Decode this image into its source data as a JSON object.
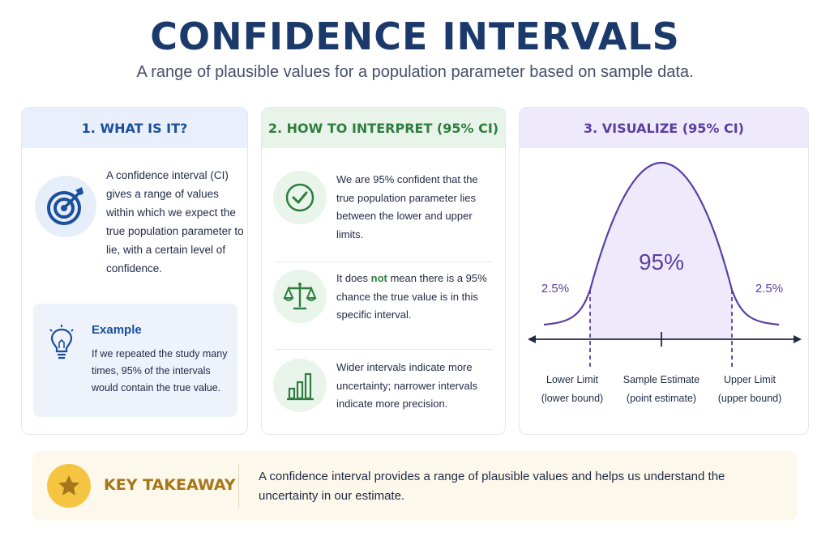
{
  "title": "CONFIDENCE INTERVALS",
  "subtitle": "A range of plausible values for a population parameter based on sample data.",
  "cards": {
    "what": {
      "heading": "1. WHAT IS IT?",
      "icon": "target-icon",
      "text": "A confidence interval (CI) gives a range of values within which we expect the true population parameter to lie, with a certain level of confidence.",
      "example": {
        "icon": "lightbulb-icon",
        "title": "Example",
        "text": "If we repeated the study many times, 95% of the intervals would contain the true value."
      }
    },
    "interpret": {
      "heading": "2. HOW TO INTERPRET (95% CI)",
      "rows": [
        {
          "icon": "checkmark-icon",
          "text": "We are 95% confident that the true population parameter lies between the lower and upper limits."
        },
        {
          "icon": "scales-icon",
          "text_before": "It does ",
          "emphasis": "not",
          "text_after": " mean there is a 95% chance the true value is in this specific interval."
        },
        {
          "icon": "bar-chart-icon",
          "text": "Wider intervals indicate more uncertainty; narrower intervals indicate more precision."
        }
      ]
    },
    "visualize": {
      "heading": "3. VISUALIZE (95% CI)",
      "center_label": "95%",
      "left_tail": "2.5%",
      "right_tail": "2.5%",
      "lower_limit": "Lower Limit",
      "lower_sub": "(lower bound)",
      "estimate": "Sample Estimate",
      "estimate_sub": "(point estimate)",
      "upper_limit": "Upper Limit",
      "upper_sub": "(upper bound)"
    }
  },
  "takeaway": {
    "icon": "star-icon",
    "label": "KEY TAKEAWAY",
    "text": "A confidence interval provides a range of plausible values and helps us understand the uncertainty in our estimate."
  },
  "colors": {
    "title": "#1b3a6b",
    "blue": "#1c4f9c",
    "green": "#2e7d3e",
    "purple": "#5a3fa0",
    "gold": "#a5761a"
  }
}
